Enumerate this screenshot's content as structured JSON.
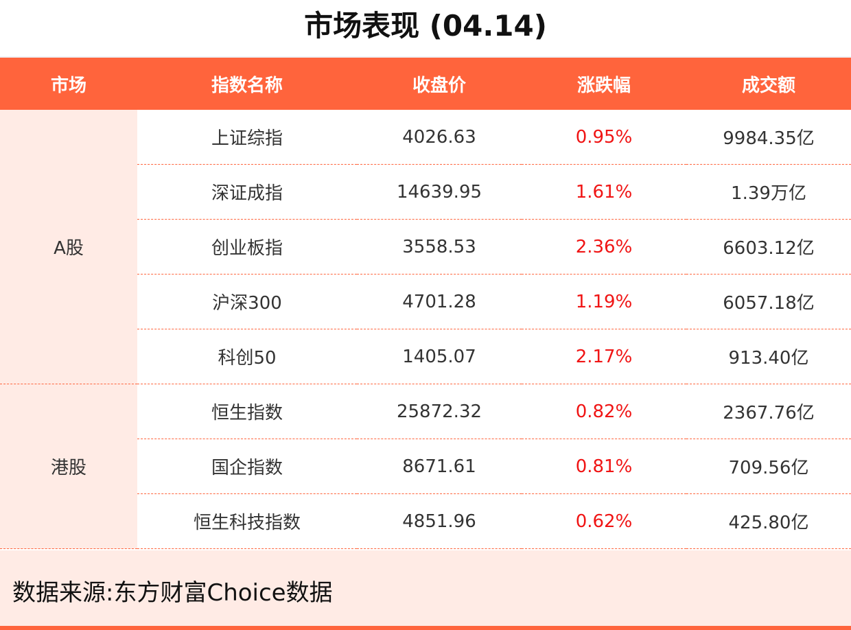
{
  "title": "市场表现 (04.14)",
  "colors": {
    "accent": "#FF643C",
    "market_bg": "#FFEBE5",
    "up": "#F01414"
  },
  "headers": [
    "市场",
    "指数名称",
    "收盘价",
    "涨跌幅",
    "成交额"
  ],
  "groups": [
    {
      "market": "A股",
      "rows": [
        {
          "name": "上证综指",
          "close": "4026.63",
          "change": "0.95%",
          "volume": "9984.35亿"
        },
        {
          "name": "深证成指",
          "close": "14639.95",
          "change": "1.61%",
          "volume": "1.39万亿"
        },
        {
          "name": "创业板指",
          "close": "3558.53",
          "change": "2.36%",
          "volume": "6603.12亿"
        },
        {
          "name": "沪深300",
          "close": "4701.28",
          "change": "1.19%",
          "volume": "6057.18亿"
        },
        {
          "name": "科创50",
          "close": "1405.07",
          "change": "2.17%",
          "volume": "913.40亿"
        }
      ]
    },
    {
      "market": "港股",
      "rows": [
        {
          "name": "恒生指数",
          "close": "25872.32",
          "change": "0.82%",
          "volume": "2367.76亿"
        },
        {
          "name": "国企指数",
          "close": "8671.61",
          "change": "0.81%",
          "volume": "709.56亿"
        },
        {
          "name": "恒生科技指数",
          "close": "4851.96",
          "change": "0.62%",
          "volume": "425.80亿"
        }
      ]
    }
  ],
  "footer": "数据来源:东方财富Choice数据"
}
